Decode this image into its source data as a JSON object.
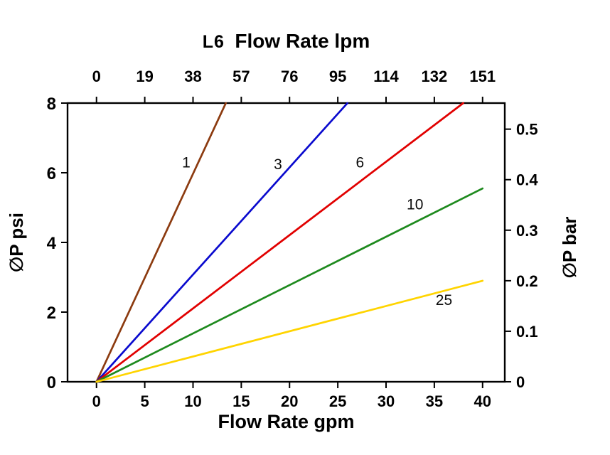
{
  "chart_data": {
    "type": "line",
    "title_prefix": "L6",
    "title": "Flow Rate lpm",
    "xlabel_bottom": "Flow Rate gpm",
    "ylabel_left": "∅P psi",
    "ylabel_right": "∅P bar",
    "x_bottom_ticks": [
      0,
      5,
      10,
      15,
      20,
      25,
      30,
      35,
      40
    ],
    "x_top_ticks": [
      0,
      19,
      38,
      57,
      76,
      95,
      114,
      132,
      151
    ],
    "y_left_ticks": [
      0,
      2,
      4,
      6,
      8
    ],
    "y_right_ticks": [
      0,
      0.1,
      0.2,
      0.3,
      0.4,
      0.5
    ],
    "xlim": [
      -3,
      42.3
    ],
    "ylim": [
      0,
      8
    ],
    "bar_to_psi": 14.504,
    "axis_color": "#000000",
    "series": [
      {
        "name": "1",
        "color": "#8C3B10",
        "points": [
          [
            0,
            0
          ],
          [
            13.4,
            8
          ]
        ],
        "label_at": [
          9.3,
          6.15
        ]
      },
      {
        "name": "3",
        "color": "#0A0ACE",
        "points": [
          [
            0,
            0
          ],
          [
            26,
            8
          ]
        ],
        "label_at": [
          18.8,
          6.1
        ]
      },
      {
        "name": "6",
        "color": "#E10000",
        "points": [
          [
            0,
            0
          ],
          [
            38,
            8
          ]
        ],
        "label_at": [
          27.3,
          6.15
        ]
      },
      {
        "name": "10",
        "color": "#1E8A1E",
        "points": [
          [
            0,
            0
          ],
          [
            40,
            5.55
          ]
        ],
        "label_at": [
          33.0,
          4.95
        ]
      },
      {
        "name": "25",
        "color": "#FFD400",
        "points": [
          [
            0,
            0
          ],
          [
            40,
            2.9
          ]
        ],
        "label_at": [
          36.0,
          2.2
        ]
      }
    ]
  }
}
